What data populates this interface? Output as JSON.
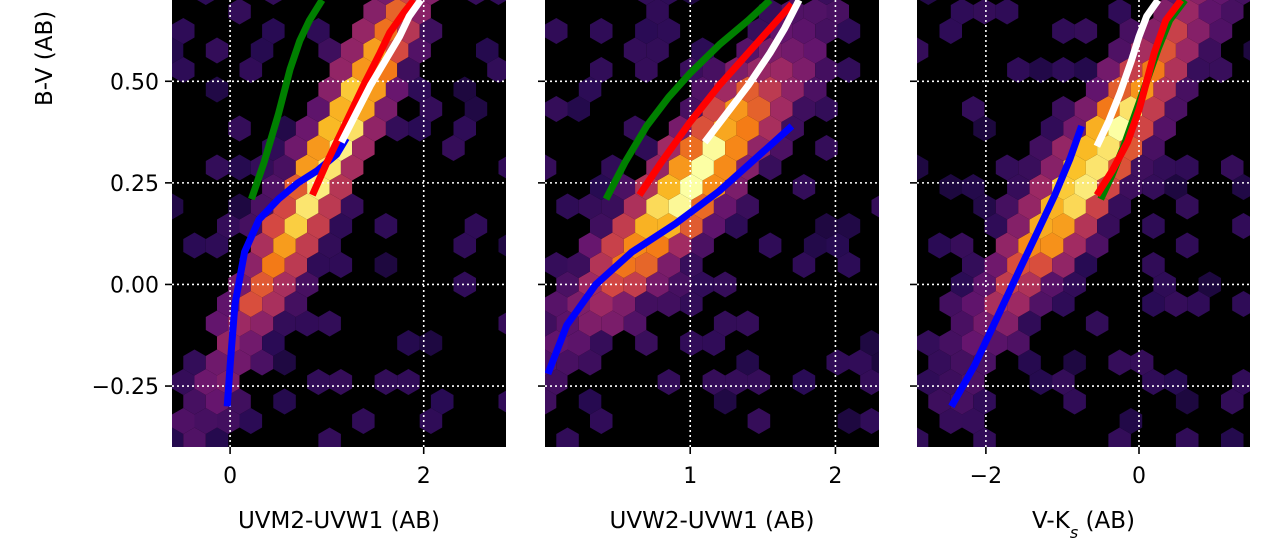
{
  "chart_data": [
    {
      "type": "scatter",
      "style": "hexbin density (inferno colormap) with overlaid model tracks",
      "xlabel": "UVM2-UVW1 (AB)",
      "ylabel": "B-V (AB)",
      "xlim": [
        -0.6,
        2.85
      ],
      "ylim": [
        -0.4,
        0.7
      ],
      "x_ticks": [
        "0",
        "2"
      ],
      "x_tick_values": [
        0,
        2
      ],
      "y_ticks": [
        "0.50",
        "0.25",
        "0.00",
        "−0.25"
      ],
      "y_tick_values": [
        0.5,
        0.25,
        0.0,
        -0.25
      ],
      "grid": true,
      "density_ridge": {
        "x0": 1.05,
        "y0": 0.33,
        "slope": 0.45
      },
      "series": [
        {
          "color": "#0000ff",
          "x": [
            -0.03,
            0.0,
            0.05,
            0.15,
            0.3,
            0.5,
            0.7,
            0.9,
            1.1,
            1.2
          ],
          "y": [
            -0.3,
            -0.2,
            -0.05,
            0.08,
            0.16,
            0.21,
            0.25,
            0.28,
            0.32,
            0.36
          ]
        },
        {
          "color": "#008000",
          "x": [
            0.22,
            0.35,
            0.5,
            0.62,
            0.72,
            0.82,
            0.95
          ],
          "y": [
            0.21,
            0.3,
            0.42,
            0.53,
            0.6,
            0.65,
            0.7
          ]
        },
        {
          "color": "#ff0000",
          "x": [
            0.85,
            1.0,
            1.2,
            1.4,
            1.55,
            1.65,
            1.8,
            1.9
          ],
          "y": [
            0.22,
            0.3,
            0.4,
            0.5,
            0.57,
            0.62,
            0.67,
            0.7
          ]
        },
        {
          "color": "#ffffff",
          "x": [
            1.15,
            1.3,
            1.45,
            1.6,
            1.75,
            1.85,
            1.97
          ],
          "y": [
            0.35,
            0.42,
            0.49,
            0.55,
            0.61,
            0.66,
            0.7
          ]
        }
      ]
    },
    {
      "type": "scatter",
      "style": "hexbin density (inferno colormap) with overlaid model tracks",
      "xlabel": "UVW2-UVW1 (AB)",
      "ylabel": "",
      "xlim": [
        0.0,
        2.3
      ],
      "ylim": [
        -0.4,
        0.7
      ],
      "x_ticks": [
        "1",
        "2"
      ],
      "x_tick_values": [
        1,
        2
      ],
      "y_ticks": [],
      "y_tick_values": [
        0.5,
        0.25,
        0.0,
        -0.25
      ],
      "grid": true,
      "density_ridge": {
        "x0": 1.0,
        "y0": 0.25,
        "slope": 0.4
      },
      "series": [
        {
          "color": "#0000ff",
          "x": [
            0.02,
            0.15,
            0.35,
            0.6,
            0.9,
            1.2,
            1.45,
            1.7
          ],
          "y": [
            -0.22,
            -0.1,
            0.0,
            0.08,
            0.15,
            0.23,
            0.31,
            0.39
          ]
        },
        {
          "color": "#008000",
          "x": [
            0.42,
            0.55,
            0.7,
            0.85,
            1.0,
            1.2,
            1.4,
            1.55
          ],
          "y": [
            0.21,
            0.3,
            0.39,
            0.46,
            0.52,
            0.59,
            0.65,
            0.7
          ]
        },
        {
          "color": "#ff0000",
          "x": [
            0.65,
            0.8,
            1.0,
            1.2,
            1.4,
            1.55,
            1.7
          ],
          "y": [
            0.22,
            0.3,
            0.4,
            0.49,
            0.57,
            0.63,
            0.69
          ]
        },
        {
          "color": "#ffffff",
          "x": [
            1.1,
            1.25,
            1.4,
            1.55,
            1.65,
            1.75
          ],
          "y": [
            0.35,
            0.42,
            0.49,
            0.57,
            0.63,
            0.7
          ]
        }
      ]
    },
    {
      "type": "scatter",
      "style": "hexbin density (inferno colormap) with overlaid model tracks",
      "xlabel": "V-K",
      "xlabel_subscript": "s",
      "xlabel_suffix": " (AB)",
      "ylabel": "",
      "xlim": [
        -2.9,
        1.45
      ],
      "ylim": [
        -0.4,
        0.7
      ],
      "x_ticks": [
        "−2",
        "0"
      ],
      "x_tick_values": [
        -2,
        0
      ],
      "y_ticks": [],
      "y_tick_values": [
        0.5,
        0.25,
        0.0,
        -0.25
      ],
      "grid": true,
      "density_ridge": {
        "x0": -0.6,
        "y0": 0.3,
        "slope": 0.26
      },
      "series": [
        {
          "color": "#0000ff",
          "x": [
            -2.45,
            -2.15,
            -1.85,
            -1.6,
            -1.35,
            -1.1,
            -0.9,
            -0.75
          ],
          "y": [
            -0.3,
            -0.2,
            -0.08,
            0.02,
            0.12,
            0.22,
            0.31,
            0.39
          ]
        },
        {
          "color": "#008000",
          "x": [
            -0.5,
            -0.35,
            -0.2,
            -0.05,
            0.1,
            0.25,
            0.4,
            0.6
          ],
          "y": [
            0.21,
            0.27,
            0.34,
            0.42,
            0.5,
            0.58,
            0.65,
            0.7
          ]
        },
        {
          "color": "#ff0000",
          "x": [
            -0.55,
            -0.35,
            -0.15,
            0.0,
            0.1,
            0.2,
            0.35,
            0.55
          ],
          "y": [
            0.22,
            0.28,
            0.35,
            0.43,
            0.5,
            0.57,
            0.65,
            0.7
          ]
        },
        {
          "color": "#ffffff",
          "x": [
            -0.55,
            -0.4,
            -0.25,
            -0.1,
            0.0,
            0.1,
            0.25
          ],
          "y": [
            0.34,
            0.4,
            0.47,
            0.55,
            0.61,
            0.66,
            0.7
          ]
        }
      ]
    }
  ]
}
